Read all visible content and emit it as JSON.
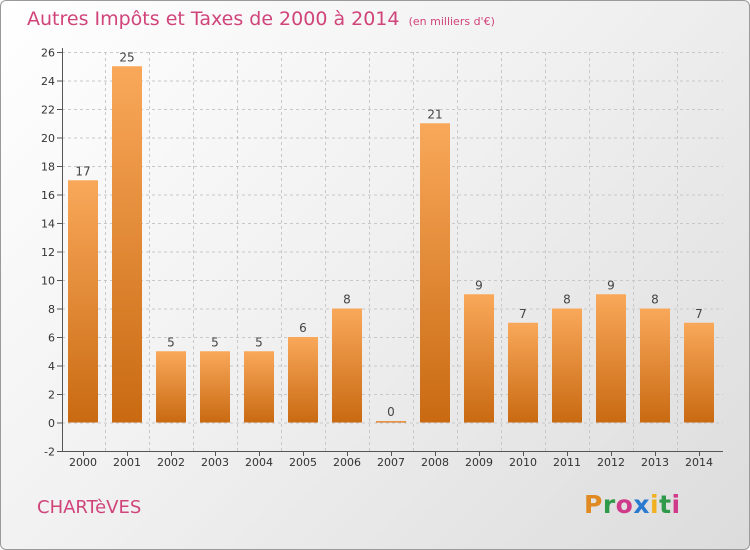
{
  "header": {
    "title": "Autres Impôts et Taxes de 2000 à 2014",
    "subtitle": "(en milliers d'€)"
  },
  "footer": {
    "town": "CHARTèVES",
    "brand": "Proxiti"
  },
  "colors": {
    "title": "#d0447a",
    "bar_light": "#f9a85a",
    "bar_dark": "#c96a12",
    "grid": "#c8c8c8",
    "brand_letters": [
      "#e08a22",
      "#2f9a4a",
      "#d03a8a",
      "#2a7ad0",
      "#f0b020",
      "#2f9a4a",
      "#d03a8a"
    ]
  },
  "chart_data": {
    "type": "bar",
    "categories": [
      "2000",
      "2001",
      "2002",
      "2003",
      "2004",
      "2005",
      "2006",
      "2007",
      "2008",
      "2009",
      "2010",
      "2011",
      "2012",
      "2013",
      "2014"
    ],
    "values": [
      17,
      25,
      5,
      5,
      5,
      6,
      8,
      0,
      21,
      9,
      7,
      8,
      9,
      8,
      7
    ],
    "ylim": [
      -2,
      26
    ],
    "yticks": [
      -2,
      0,
      2,
      4,
      6,
      8,
      10,
      12,
      14,
      16,
      18,
      20,
      22,
      24,
      26
    ],
    "grid": true,
    "data_labels": true
  }
}
